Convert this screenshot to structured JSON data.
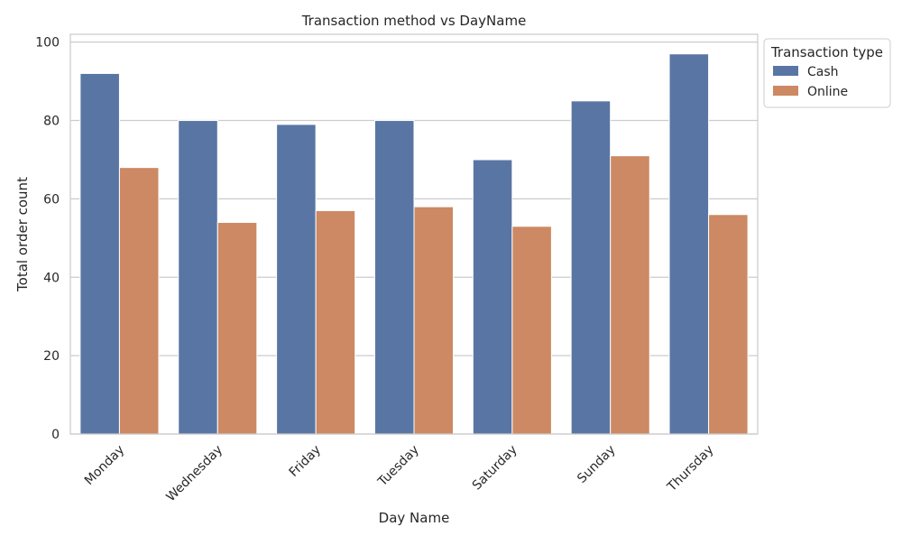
{
  "chart_data": {
    "type": "bar",
    "title": "Transaction method vs DayName",
    "xlabel": "Day Name",
    "ylabel": "Total order count",
    "categories": [
      "Monday",
      "Wednesday",
      "Friday",
      "Tuesday",
      "Saturday",
      "Sunday",
      "Thursday"
    ],
    "series": [
      {
        "name": "Cash",
        "values": [
          92,
          80,
          79,
          80,
          70,
          85,
          97
        ],
        "color": "#5975a4"
      },
      {
        "name": "Online",
        "values": [
          68,
          54,
          57,
          58,
          53,
          71,
          56
        ],
        "color": "#cc8963"
      }
    ],
    "ylim": [
      0,
      102
    ],
    "yticks": [
      0,
      20,
      40,
      60,
      80,
      100
    ],
    "grid": true,
    "legend": {
      "title": "Transaction type",
      "placement": "outside-top-right"
    },
    "xtick_rotation": 45
  }
}
